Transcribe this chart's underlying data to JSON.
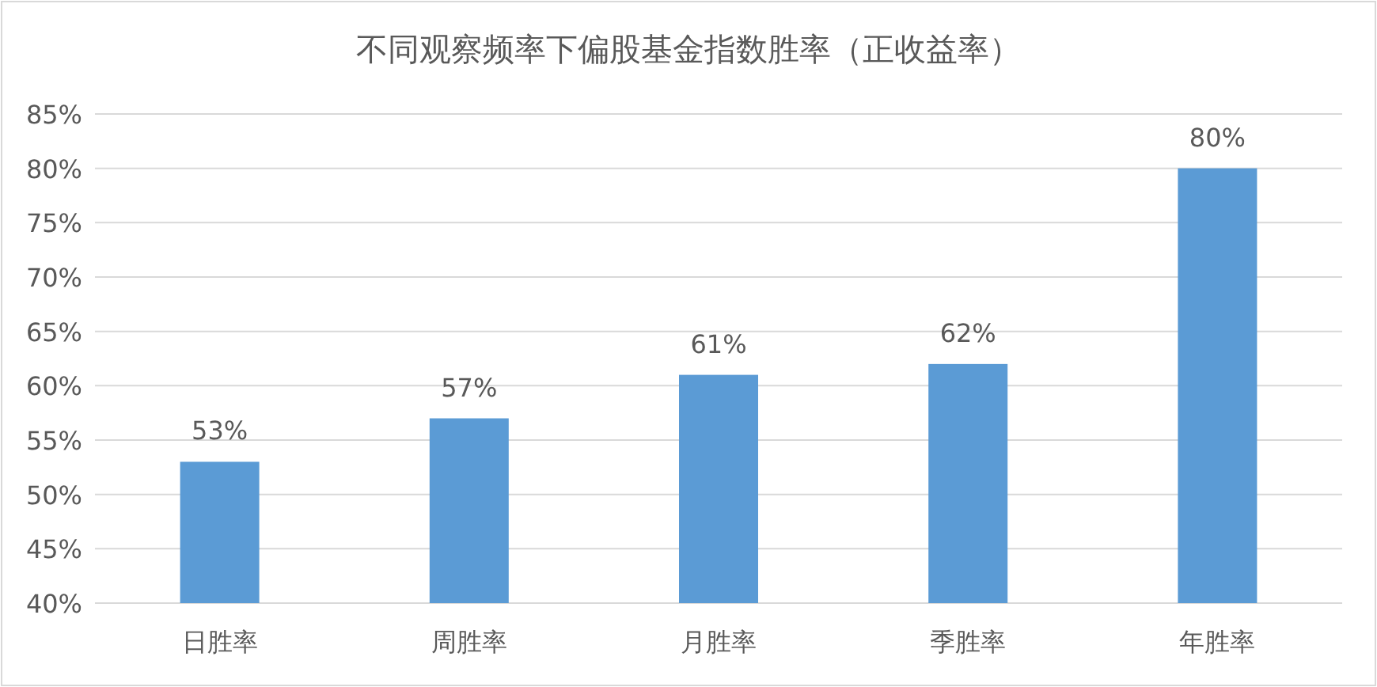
{
  "chart_data": {
    "type": "bar",
    "title": "不同观察频率下偏股基金指数胜率（正收益率）",
    "categories": [
      "日胜率",
      "周胜率",
      "月胜率",
      "季胜率",
      "年胜率"
    ],
    "values": [
      53,
      57,
      61,
      62,
      80
    ],
    "color": "#5b9bd5",
    "ylim": [
      40,
      85
    ],
    "yticks": [
      {
        "value": 40,
        "label": "40%"
      },
      {
        "value": 45,
        "label": "45%"
      },
      {
        "value": 50,
        "label": "50%"
      },
      {
        "value": 55,
        "label": "55%"
      },
      {
        "value": 60,
        "label": "60%"
      },
      {
        "value": 65,
        "label": "65%"
      },
      {
        "value": 70,
        "label": "70%"
      },
      {
        "value": 75,
        "label": "75%"
      },
      {
        "value": 80,
        "label": "80%"
      },
      {
        "value": 85,
        "label": "85%"
      }
    ],
    "value_labels": [
      "53%",
      "57%",
      "61%",
      "62%",
      "80%"
    ],
    "grid": "y"
  }
}
